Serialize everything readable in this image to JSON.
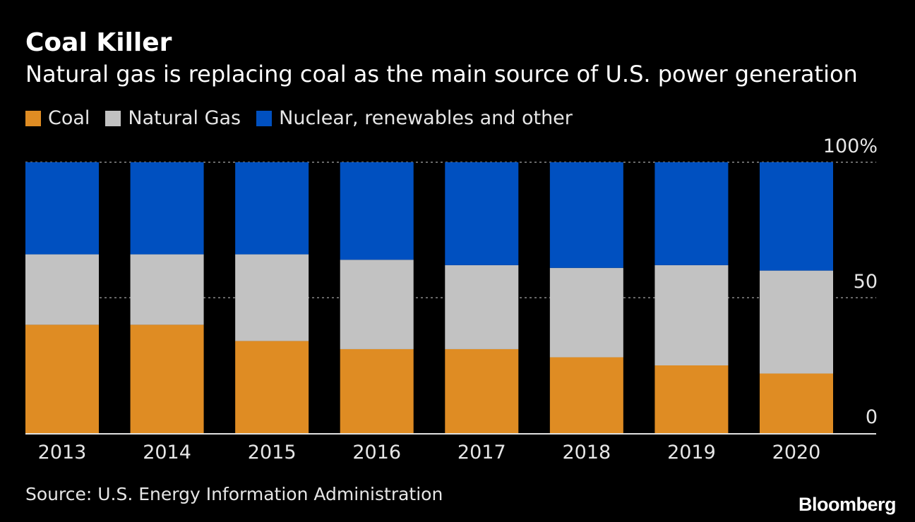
{
  "header": {
    "title": "Coal Killer",
    "subtitle": "Natural gas is replacing coal as the main source of U.S. power generation"
  },
  "legend": [
    {
      "label": "Coal",
      "color": "#df8c23"
    },
    {
      "label": "Natural Gas",
      "color": "#c2c2c2"
    },
    {
      "label": "Nuclear, renewables and other",
      "color": "#0050c0"
    }
  ],
  "chart_data": {
    "type": "bar",
    "stacked": true,
    "categories": [
      "2013",
      "2014",
      "2015",
      "2016",
      "2017",
      "2018",
      "2019",
      "2020"
    ],
    "series": [
      {
        "name": "Coal",
        "color": "#df8c23",
        "values": [
          40,
          40,
          34,
          31,
          31,
          28,
          25,
          22
        ]
      },
      {
        "name": "Natural Gas",
        "color": "#c2c2c2",
        "values": [
          26,
          26,
          32,
          33,
          31,
          33,
          37,
          38
        ]
      },
      {
        "name": "Nuclear, renewables and other",
        "color": "#0050c0",
        "values": [
          34,
          34,
          34,
          36,
          38,
          39,
          38,
          40
        ]
      }
    ],
    "y_ticks": [
      0,
      50,
      100
    ],
    "y_tick_labels": [
      "0",
      "50",
      "100%"
    ],
    "ylim": [
      0,
      100
    ],
    "gridlines": [
      50,
      100
    ],
    "y_axis_position": "right"
  },
  "footer": {
    "source": "Source: U.S. Energy Information Administration",
    "logo": "Bloomberg"
  }
}
